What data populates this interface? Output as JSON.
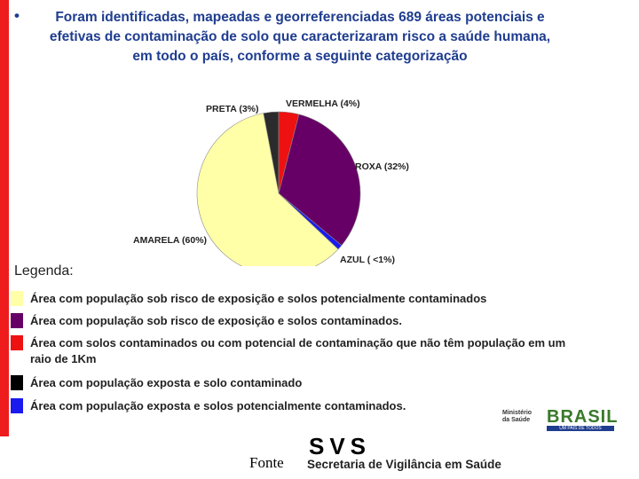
{
  "slide": {
    "bullet": "•",
    "title_lines": [
      "Foram identificadas, mapeadas e georreferenciadas 689 áreas potenciais e",
      "efetivas de contaminação de solo que caracterizaram risco a saúde humana,",
      "em todo o país, conforme a seguinte categorização"
    ],
    "accent_color": "#ee1c1c",
    "title_color": "#1f3d8f"
  },
  "chart_data": {
    "type": "pie",
    "title": "",
    "slices": [
      {
        "label": "PRETA (3%)",
        "value": 3,
        "color": "#2b2b2b"
      },
      {
        "label": "VERMELHA (4%)",
        "value": 4,
        "color": "#ee1111"
      },
      {
        "label": "ROXA (32%)",
        "value": 32,
        "color": "#660066"
      },
      {
        "label": "AZUL ( <1%)",
        "value": 1,
        "color": "#1a1aee"
      },
      {
        "label": "AMARELA (60%)",
        "value": 60,
        "color": "#ffffa8"
      }
    ]
  },
  "legend": {
    "title": "Legenda:",
    "items": [
      {
        "text": "Área com população sob risco de exposição e solos potencialmente contaminados",
        "color": "#ffffa8"
      },
      {
        "text": "Área com população sob risco de exposição e solos contaminados.",
        "color": "#660066"
      },
      {
        "text": "Área com solos contaminados ou com potencial de contaminação que não têm população em um",
        "text2": "raio de 1Km",
        "color": "#ee1111"
      },
      {
        "text": "Área com população exposta e solo contaminado",
        "color": "#000000"
      },
      {
        "text": "Área com população exposta e solos potencialmente contaminados.",
        "color": "#1a1aee"
      }
    ]
  },
  "footer": {
    "fonte_label": "Fonte",
    "svs_letters": "SVS",
    "svs_name": "Secretaria de Vigilância em Saúde",
    "ministerio_line1": "Ministério",
    "ministerio_line2": "da Saúde",
    "brasil_logo_text": "BRASIL",
    "brasil_logo_sub": "UM PAÍS DE TODOS"
  }
}
